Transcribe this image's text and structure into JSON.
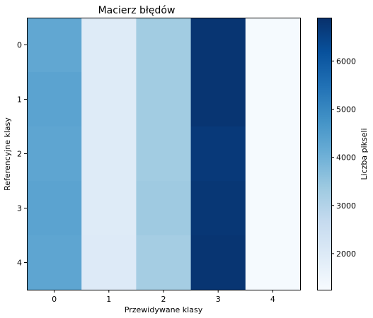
{
  "chart_data": {
    "type": "heatmap",
    "title": "Macierz błędów",
    "xlabel": "Przewidywane klasy",
    "ylabel": "Referencyjne klasy",
    "x_categories": [
      "0",
      "1",
      "2",
      "3",
      "4"
    ],
    "y_categories": [
      "0",
      "1",
      "2",
      "3",
      "4"
    ],
    "values": [
      [
        4250,
        1950,
        3300,
        6800,
        1300
      ],
      [
        4350,
        1950,
        3300,
        6800,
        1300
      ],
      [
        4300,
        1950,
        3300,
        6700,
        1300
      ],
      [
        4350,
        1950,
        3350,
        6750,
        1300
      ],
      [
        4300,
        2000,
        3250,
        6800,
        1300
      ]
    ],
    "colorbar": {
      "label": "Liczba pikseli",
      "range": [
        1250,
        6900
      ],
      "ticks": [
        2000,
        3000,
        4000,
        5000,
        6000
      ],
      "colormap": "Blues"
    },
    "grid": false,
    "legend": "none"
  }
}
